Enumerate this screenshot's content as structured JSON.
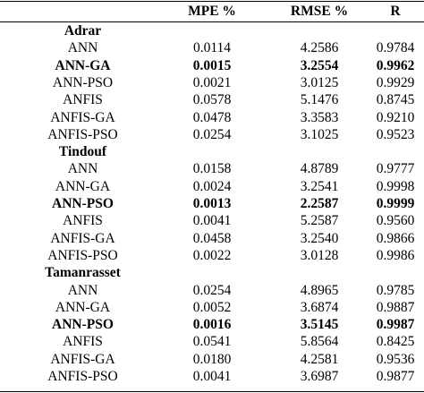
{
  "header": {
    "col0": "",
    "col1": "MPE %",
    "col2": "RMSE %",
    "col3": "R"
  },
  "groups": [
    {
      "name": "Adrar",
      "rows": [
        {
          "model": "ANN",
          "mpe": "0.0114",
          "rmse": "4.2586",
          "r": "0.9784",
          "bold": false
        },
        {
          "model": "ANN-GA",
          "mpe": "0.0015",
          "rmse": "3.2554",
          "r": "0.9962",
          "bold": true
        },
        {
          "model": "ANN-PSO",
          "mpe": "0.0021",
          "rmse": "3.0125",
          "r": "0.9929",
          "bold": false
        },
        {
          "model": "ANFIS",
          "mpe": "0.0578",
          "rmse": "5.1476",
          "r": "0.8745",
          "bold": false
        },
        {
          "model": "ANFIS-GA",
          "mpe": "0.0478",
          "rmse": "3.3583",
          "r": "0.9210",
          "bold": false
        },
        {
          "model": "ANFIS-PSO",
          "mpe": "0.0254",
          "rmse": "3.1025",
          "r": "0.9523",
          "bold": false
        }
      ]
    },
    {
      "name": "Tindouf",
      "rows": [
        {
          "model": "ANN",
          "mpe": "0.0158",
          "rmse": "4.8789",
          "r": "0.9777",
          "bold": false
        },
        {
          "model": "ANN-GA",
          "mpe": "0.0024",
          "rmse": "3.2541",
          "r": "0.9998",
          "bold": false
        },
        {
          "model": "ANN-PSO",
          "mpe": "0.0013",
          "rmse": "2.2587",
          "r": "0.9999",
          "bold": true
        },
        {
          "model": "ANFIS",
          "mpe": "0.0041",
          "rmse": "5.2587",
          "r": "0.9560",
          "bold": false
        },
        {
          "model": "ANFIS-GA",
          "mpe": "0.0458",
          "rmse": "3.2540",
          "r": "0.9866",
          "bold": false
        },
        {
          "model": "ANFIS-PSO",
          "mpe": "0.0022",
          "rmse": "3.0128",
          "r": "0.9986",
          "bold": false
        }
      ]
    },
    {
      "name": "Tamanrasset",
      "rows": [
        {
          "model": "ANN",
          "mpe": "0.0254",
          "rmse": "4.8965",
          "r": "0.9785",
          "bold": false
        },
        {
          "model": "ANN-GA",
          "mpe": "0.0052",
          "rmse": "3.6874",
          "r": "0.9887",
          "bold": false
        },
        {
          "model": "ANN-PSO",
          "mpe": "0.0016",
          "rmse": "3.5145",
          "r": "0.9987",
          "bold": true
        },
        {
          "model": "ANFIS",
          "mpe": "0.0541",
          "rmse": "5.8564",
          "r": "0.8425",
          "bold": false
        },
        {
          "model": "ANFIS-GA",
          "mpe": "0.0180",
          "rmse": "4.2581",
          "r": "0.9536",
          "bold": false
        },
        {
          "model": "ANFIS-PSO",
          "mpe": "0.0041",
          "rmse": "3.6987",
          "r": "0.9877",
          "bold": false
        }
      ]
    }
  ]
}
